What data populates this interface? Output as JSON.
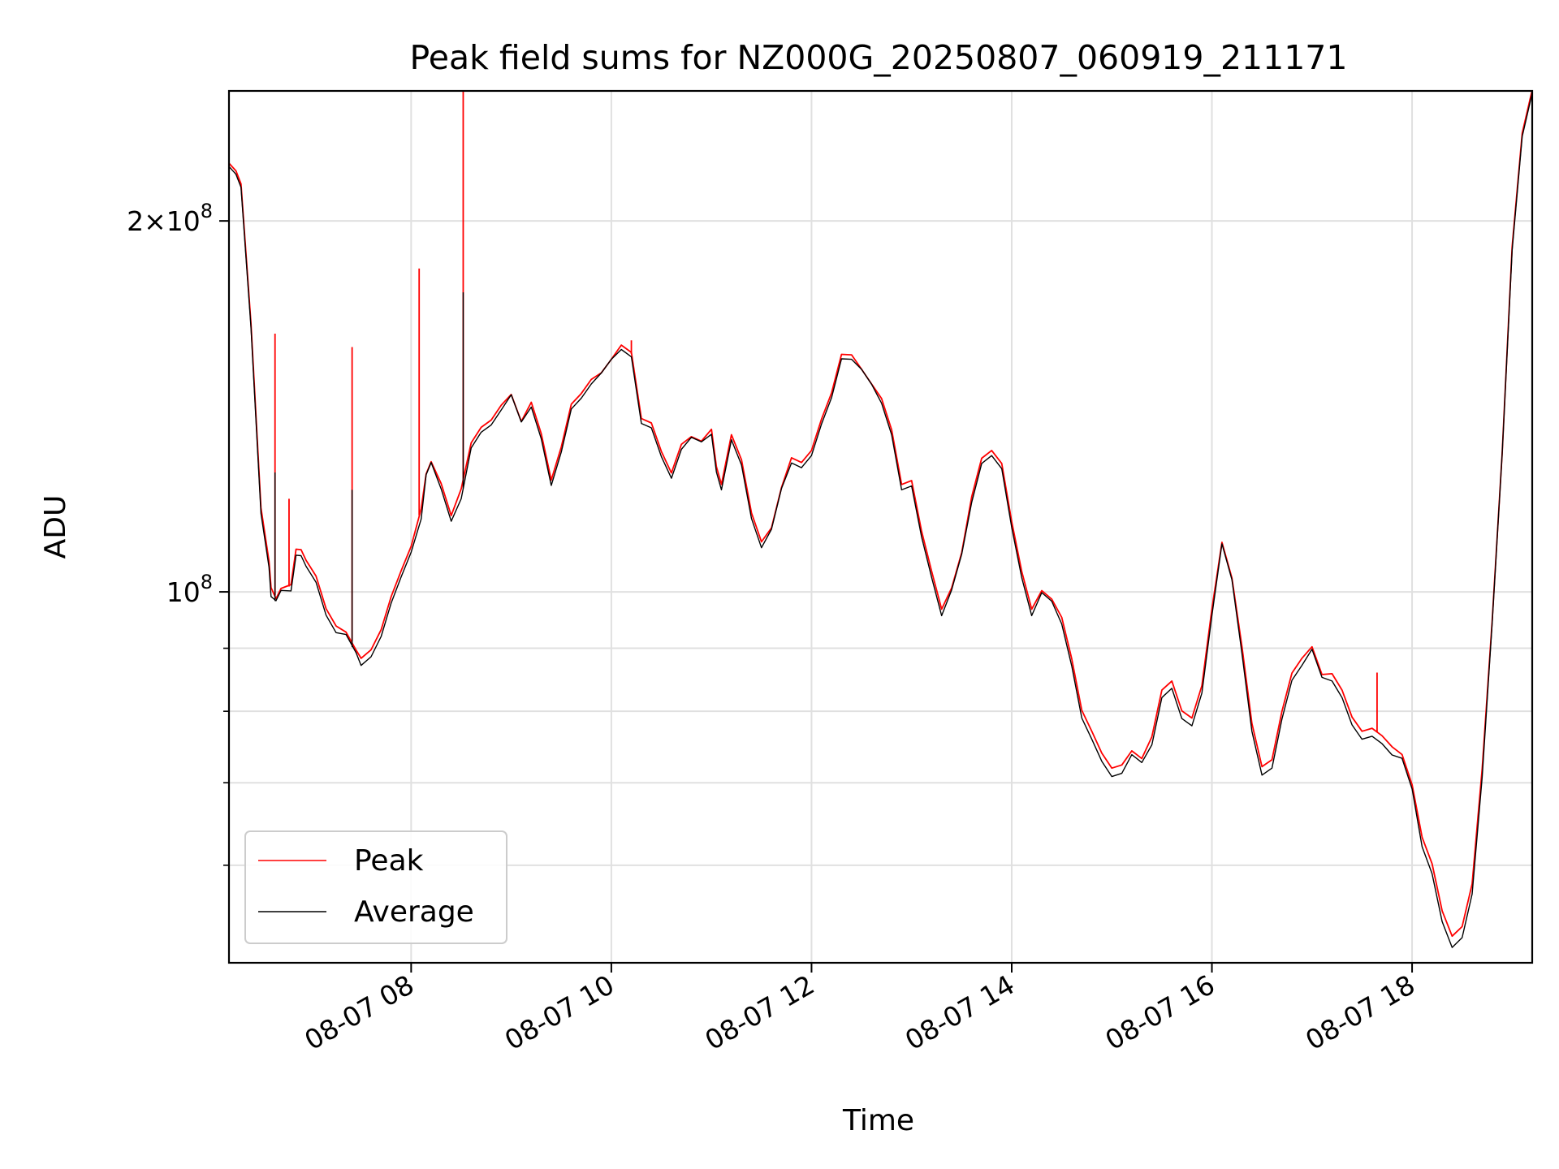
{
  "chart_data": {
    "type": "line",
    "title": "Peak field sums for NZ000G_20250807_060919_211171",
    "xlabel": "Time",
    "ylabel": "ADU",
    "x_unit": "hours on 2025-08-07 (local clock)",
    "xlim": [
      6.18,
      19.2
    ],
    "ylim": [
      50000000,
      255000000
    ],
    "y_scale": "log",
    "x_ticks": [
      {
        "value": 8,
        "label": "08-07 08"
      },
      {
        "value": 10,
        "label": "08-07 10"
      },
      {
        "value": 12,
        "label": "08-07 12"
      },
      {
        "value": 14,
        "label": "08-07 14"
      },
      {
        "value": 16,
        "label": "08-07 16"
      },
      {
        "value": 18,
        "label": "08-07 18"
      }
    ],
    "y_ticks_major": [
      {
        "value": 100000000,
        "label": "10",
        "exp": "8"
      },
      {
        "value": 200000000,
        "label": "2×10",
        "exp": "8"
      }
    ],
    "y_ticks_minor": [
      60000000,
      70000000,
      80000000,
      90000000
    ],
    "grid": true,
    "legend_position": "lower-left",
    "series": [
      {
        "name": "Peak",
        "color": "#ff0000",
        "points": [
          [
            6.18,
            222000000
          ],
          [
            6.25,
            219000000
          ],
          [
            6.3,
            214000000
          ],
          [
            6.4,
            165000000
          ],
          [
            6.5,
            117000000
          ],
          [
            6.58,
            106000000
          ],
          [
            6.6,
            101000000
          ],
          [
            6.65,
            99000000
          ],
          [
            6.7,
            101000000
          ],
          [
            6.8,
            101000000
          ],
          [
            6.85,
            108000000
          ],
          [
            6.9,
            108000000
          ],
          [
            6.95,
            106000000
          ],
          [
            7.05,
            103000000
          ],
          [
            7.15,
            97000000
          ],
          [
            7.25,
            94000000
          ],
          [
            7.35,
            93000000
          ],
          [
            7.45,
            90000000
          ],
          [
            7.5,
            88000000
          ],
          [
            7.6,
            89500000
          ],
          [
            7.7,
            93000000
          ],
          [
            7.8,
            99000000
          ],
          [
            7.9,
            104000000
          ],
          [
            8.0,
            109000000
          ],
          [
            8.1,
            117000000
          ],
          [
            8.15,
            125000000
          ],
          [
            8.2,
            128000000
          ],
          [
            8.3,
            122000000
          ],
          [
            8.4,
            115000000
          ],
          [
            8.5,
            121000000
          ],
          [
            8.6,
            132000000
          ],
          [
            8.7,
            136000000
          ],
          [
            8.8,
            138000000
          ],
          [
            8.9,
            142000000
          ],
          [
            9.0,
            145000000
          ],
          [
            9.1,
            138000000
          ],
          [
            9.2,
            142000000
          ],
          [
            9.3,
            134000000
          ],
          [
            9.4,
            123000000
          ],
          [
            9.5,
            131000000
          ],
          [
            9.6,
            142000000
          ],
          [
            9.7,
            145000000
          ],
          [
            9.8,
            149000000
          ],
          [
            9.9,
            151000000
          ],
          [
            10.0,
            155000000
          ],
          [
            10.1,
            158000000
          ],
          [
            10.2,
            156000000
          ],
          [
            10.3,
            138000000
          ],
          [
            10.4,
            137000000
          ],
          [
            10.5,
            130000000
          ],
          [
            10.6,
            125000000
          ],
          [
            10.7,
            132000000
          ],
          [
            10.8,
            134000000
          ],
          [
            10.9,
            133000000
          ],
          [
            11.0,
            135000000
          ],
          [
            11.05,
            126000000
          ],
          [
            11.1,
            122000000
          ],
          [
            11.2,
            134000000
          ],
          [
            11.3,
            128000000
          ],
          [
            11.4,
            116000000
          ],
          [
            11.5,
            110000000
          ],
          [
            11.6,
            113000000
          ],
          [
            11.7,
            122000000
          ],
          [
            11.8,
            128000000
          ],
          [
            11.9,
            127000000
          ],
          [
            12.0,
            130000000
          ],
          [
            12.1,
            138000000
          ],
          [
            12.2,
            145000000
          ],
          [
            12.3,
            156000000
          ],
          [
            12.4,
            156000000
          ],
          [
            12.5,
            152000000
          ],
          [
            12.6,
            148000000
          ],
          [
            12.7,
            143000000
          ],
          [
            12.8,
            135000000
          ],
          [
            12.9,
            122000000
          ],
          [
            13.0,
            123000000
          ],
          [
            13.1,
            112000000
          ],
          [
            13.2,
            104000000
          ],
          [
            13.3,
            97000000
          ],
          [
            13.4,
            101000000
          ],
          [
            13.5,
            108000000
          ],
          [
            13.6,
            119000000
          ],
          [
            13.7,
            128000000
          ],
          [
            13.8,
            130000000
          ],
          [
            13.9,
            127000000
          ],
          [
            14.0,
            114000000
          ],
          [
            14.1,
            104000000
          ],
          [
            14.2,
            97000000
          ],
          [
            14.3,
            100500000
          ],
          [
            14.4,
            99000000
          ],
          [
            14.5,
            95000000
          ],
          [
            14.6,
            88000000
          ],
          [
            14.7,
            80000000
          ],
          [
            14.8,
            77000000
          ],
          [
            14.9,
            74000000
          ],
          [
            15.0,
            72000000
          ],
          [
            15.1,
            72500000
          ],
          [
            15.2,
            74500000
          ],
          [
            15.3,
            73500000
          ],
          [
            15.4,
            76000000
          ],
          [
            15.5,
            83000000
          ],
          [
            15.6,
            84500000
          ],
          [
            15.7,
            80000000
          ],
          [
            15.8,
            79000000
          ],
          [
            15.9,
            84000000
          ],
          [
            16.0,
            97000000
          ],
          [
            16.1,
            110000000
          ],
          [
            16.2,
            103000000
          ],
          [
            16.3,
            90000000
          ],
          [
            16.4,
            78000000
          ],
          [
            16.5,
            72000000
          ],
          [
            16.6,
            73000000
          ],
          [
            16.7,
            80000000
          ],
          [
            16.8,
            86000000
          ],
          [
            16.9,
            88500000
          ],
          [
            17.0,
            90500000
          ],
          [
            17.1,
            86000000
          ],
          [
            17.2,
            85500000
          ],
          [
            17.3,
            83000000
          ],
          [
            17.4,
            79000000
          ],
          [
            17.5,
            77000000
          ],
          [
            17.6,
            77500000
          ],
          [
            17.7,
            76500000
          ],
          [
            17.8,
            75000000
          ],
          [
            17.9,
            74000000
          ],
          [
            18.0,
            70000000
          ],
          [
            18.1,
            63000000
          ],
          [
            18.2,
            60000000
          ],
          [
            18.3,
            55000000
          ],
          [
            18.4,
            52500000
          ],
          [
            18.5,
            53500000
          ],
          [
            18.6,
            58000000
          ],
          [
            18.7,
            72000000
          ],
          [
            18.8,
            95000000
          ],
          [
            18.9,
            130000000
          ],
          [
            19.0,
            190000000
          ],
          [
            19.1,
            235000000
          ],
          [
            19.2,
            255000000
          ]
        ],
        "spikes": [
          [
            6.64,
            162000000
          ],
          [
            6.78,
            119000000
          ],
          [
            7.41,
            158000000
          ],
          [
            8.08,
            183000000
          ],
          [
            8.52,
            255000000
          ],
          [
            10.2,
            160000000
          ],
          [
            17.65,
            86000000
          ]
        ]
      },
      {
        "name": "Average",
        "color": "#000000",
        "points": [
          [
            6.18,
            221000000
          ],
          [
            6.25,
            218000000
          ],
          [
            6.3,
            213000000
          ],
          [
            6.4,
            164000000
          ],
          [
            6.5,
            116000000
          ],
          [
            6.58,
            105000000
          ],
          [
            6.6,
            99500000
          ],
          [
            6.65,
            98000000
          ],
          [
            6.7,
            100000000
          ],
          [
            6.8,
            100000000
          ],
          [
            6.85,
            107000000
          ],
          [
            6.9,
            107000000
          ],
          [
            6.95,
            105000000
          ],
          [
            7.05,
            102000000
          ],
          [
            7.15,
            96000000
          ],
          [
            7.25,
            93000000
          ],
          [
            7.35,
            92000000
          ],
          [
            7.45,
            89000000
          ],
          [
            7.5,
            87000000
          ],
          [
            7.6,
            88500000
          ],
          [
            7.7,
            92000000
          ],
          [
            7.8,
            98000000
          ],
          [
            7.9,
            103000000
          ],
          [
            8.0,
            108000000
          ],
          [
            8.1,
            115000000
          ],
          [
            8.15,
            124000000
          ],
          [
            8.2,
            127000000
          ],
          [
            8.3,
            121000000
          ],
          [
            8.4,
            114000000
          ],
          [
            8.5,
            119000000
          ],
          [
            8.6,
            131000000
          ],
          [
            8.7,
            135000000
          ],
          [
            8.8,
            137000000
          ],
          [
            8.9,
            141000000
          ],
          [
            9.0,
            144000000
          ],
          [
            9.1,
            137000000
          ],
          [
            9.2,
            141000000
          ],
          [
            9.3,
            133000000
          ],
          [
            9.4,
            122000000
          ],
          [
            9.5,
            130000000
          ],
          [
            9.6,
            141000000
          ],
          [
            9.7,
            144000000
          ],
          [
            9.8,
            148000000
          ],
          [
            9.9,
            150000000
          ],
          [
            10.0,
            154000000
          ],
          [
            10.1,
            157000000
          ],
          [
            10.2,
            155000000
          ],
          [
            10.3,
            137000000
          ],
          [
            10.4,
            136000000
          ],
          [
            10.5,
            129000000
          ],
          [
            10.6,
            124000000
          ],
          [
            10.7,
            131000000
          ],
          [
            10.8,
            133000000
          ],
          [
            10.9,
            132000000
          ],
          [
            11.0,
            134000000
          ],
          [
            11.05,
            125000000
          ],
          [
            11.1,
            121000000
          ],
          [
            11.2,
            133000000
          ],
          [
            11.3,
            127000000
          ],
          [
            11.4,
            115000000
          ],
          [
            11.5,
            109000000
          ],
          [
            11.6,
            112000000
          ],
          [
            11.7,
            121000000
          ],
          [
            11.8,
            127000000
          ],
          [
            11.9,
            126000000
          ],
          [
            12.0,
            129000000
          ],
          [
            12.1,
            137000000
          ],
          [
            12.2,
            144000000
          ],
          [
            12.3,
            155000000
          ],
          [
            12.4,
            155000000
          ],
          [
            12.5,
            151000000
          ],
          [
            12.6,
            147000000
          ],
          [
            12.7,
            142000000
          ],
          [
            12.8,
            134000000
          ],
          [
            12.9,
            121000000
          ],
          [
            13.0,
            122000000
          ],
          [
            13.1,
            111000000
          ],
          [
            13.2,
            103000000
          ],
          [
            13.3,
            96000000
          ],
          [
            13.4,
            100000000
          ],
          [
            13.5,
            107000000
          ],
          [
            13.6,
            118000000
          ],
          [
            13.7,
            127000000
          ],
          [
            13.8,
            129000000
          ],
          [
            13.9,
            126000000
          ],
          [
            14.0,
            113000000
          ],
          [
            14.1,
            103000000
          ],
          [
            14.2,
            96000000
          ],
          [
            14.3,
            99500000
          ],
          [
            14.4,
            98000000
          ],
          [
            14.5,
            94000000
          ],
          [
            14.6,
            87000000
          ],
          [
            14.7,
            79000000
          ],
          [
            14.8,
            76000000
          ],
          [
            14.9,
            73000000
          ],
          [
            15.0,
            71000000
          ],
          [
            15.1,
            71500000
          ],
          [
            15.2,
            73500000
          ],
          [
            15.3,
            72500000
          ],
          [
            15.4,
            75000000
          ],
          [
            15.5,
            82000000
          ],
          [
            15.6,
            83500000
          ],
          [
            15.7,
            79000000
          ],
          [
            15.8,
            78000000
          ],
          [
            15.9,
            83000000
          ],
          [
            16.0,
            96000000
          ],
          [
            16.1,
            109000000
          ],
          [
            16.2,
            102000000
          ],
          [
            16.3,
            89000000
          ],
          [
            16.4,
            77000000
          ],
          [
            16.5,
            71000000
          ],
          [
            16.6,
            72000000
          ],
          [
            16.7,
            79000000
          ],
          [
            16.8,
            85000000
          ],
          [
            16.9,
            87500000
          ],
          [
            17.0,
            89500000
          ],
          [
            17.1,
            85000000
          ],
          [
            17.2,
            84500000
          ],
          [
            17.3,
            82000000
          ],
          [
            17.4,
            78000000
          ],
          [
            17.5,
            76000000
          ],
          [
            17.6,
            76500000
          ],
          [
            17.7,
            75500000
          ],
          [
            17.8,
            74000000
          ],
          [
            17.9,
            73000000
          ],
          [
            18.0,
            69000000
          ],
          [
            18.1,
            62000000
          ],
          [
            18.2,
            59000000
          ],
          [
            18.3,
            54000000
          ],
          [
            18.4,
            51500000
          ],
          [
            18.5,
            52500000
          ],
          [
            18.6,
            57000000
          ],
          [
            18.7,
            71000000
          ],
          [
            18.8,
            94000000
          ],
          [
            18.9,
            129000000
          ],
          [
            19.0,
            189000000
          ],
          [
            19.1,
            234000000
          ],
          [
            19.2,
            254000000
          ]
        ],
        "spikes": [
          [
            6.64,
            125000000
          ],
          [
            7.41,
            121000000
          ],
          [
            8.52,
            175000000
          ]
        ]
      }
    ]
  }
}
